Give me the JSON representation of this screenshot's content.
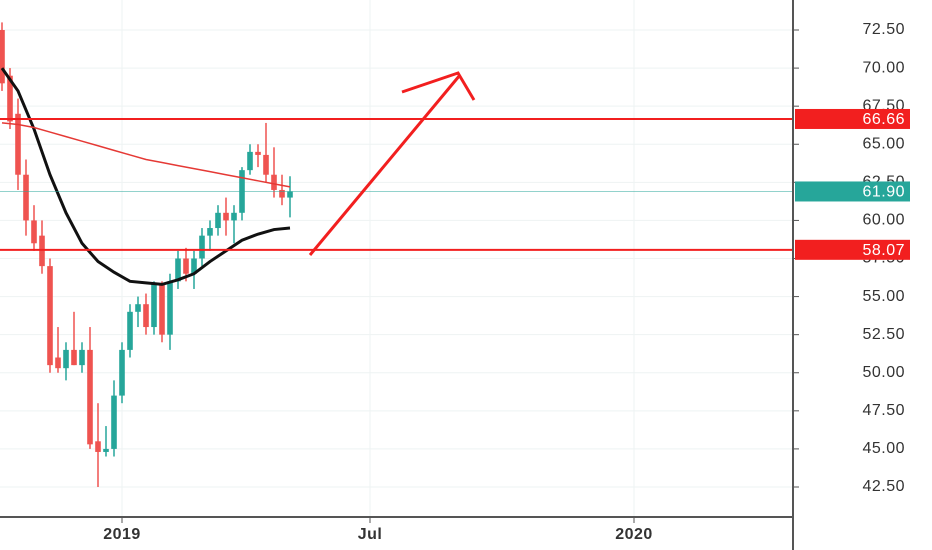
{
  "chart_data": {
    "type": "candlestick",
    "xlim": [
      -15.25,
      83.875
    ],
    "ylim": [
      40.53,
      74.47
    ],
    "xticks": [
      {
        "value": 0,
        "label": "2019"
      },
      {
        "value": 31,
        "label": "Jul"
      },
      {
        "value": 64,
        "label": "2020"
      }
    ],
    "yticks": [
      {
        "value": 42.5,
        "label": "42.50"
      },
      {
        "value": 45,
        "label": "45.00"
      },
      {
        "value": 47.5,
        "label": "47.50"
      },
      {
        "value": 50,
        "label": "50.00"
      },
      {
        "value": 52.5,
        "label": "52.50"
      },
      {
        "value": 55,
        "label": "55.00"
      },
      {
        "value": 57.5,
        "label": "57.50"
      },
      {
        "value": 60,
        "label": "60.00"
      },
      {
        "value": 62.5,
        "label": "62.50"
      },
      {
        "value": 65,
        "label": "65.00"
      },
      {
        "value": 67.5,
        "label": "67.50"
      },
      {
        "value": 70,
        "label": "70.00"
      },
      {
        "value": 72.5,
        "label": "72.50"
      }
    ],
    "grid": true,
    "up_color": "#26a69a",
    "down_color": "#ef5350",
    "candles": {
      "x": [
        -15,
        -14,
        -13,
        -12,
        -11,
        -10,
        -9,
        -8,
        -7,
        -6,
        -5,
        -4,
        -3,
        -2,
        -1,
        0,
        1,
        2,
        3,
        4,
        5,
        6,
        7,
        8,
        9,
        10,
        11,
        12,
        13,
        14,
        15,
        16,
        17,
        18,
        19,
        20,
        21
      ],
      "open": [
        72.5,
        69.5,
        67,
        63,
        60,
        59,
        57,
        51,
        50.3,
        51.5,
        50.5,
        51.5,
        45.5,
        44.8,
        45,
        48.5,
        51.5,
        54,
        54.5,
        53,
        55.8,
        52.5,
        56,
        57.5,
        56.5,
        57.5,
        59,
        59.5,
        60.5,
        60,
        60.5,
        63.3,
        64.5,
        64.3,
        63,
        62,
        61.5
      ],
      "high": [
        73,
        70,
        68,
        64,
        61,
        60,
        57.5,
        53,
        52,
        54,
        52,
        53,
        48,
        46.5,
        49.5,
        52,
        54.5,
        55,
        55.2,
        56,
        56,
        56.5,
        58,
        58.2,
        58,
        59.5,
        60,
        61,
        61.5,
        61,
        63.5,
        65,
        65,
        66.4,
        64.8,
        63,
        62.9
      ],
      "low": [
        68.5,
        66,
        62,
        59,
        58,
        56.5,
        50,
        50,
        49.5,
        50.5,
        50,
        45,
        42.5,
        44.5,
        44.5,
        48,
        51,
        53,
        52.5,
        52.5,
        52,
        51.5,
        55.5,
        56,
        55.5,
        57,
        58,
        59,
        59,
        58.5,
        60,
        63,
        63.5,
        62.5,
        61.5,
        61,
        60.2
      ],
      "close": [
        69,
        66.5,
        63,
        60,
        58.5,
        57,
        50.5,
        50.3,
        51.5,
        50.5,
        51.5,
        45.3,
        44.8,
        45,
        48.5,
        51.5,
        54,
        54.5,
        53,
        55.8,
        52.5,
        56,
        57.5,
        56.5,
        57.5,
        59,
        59.5,
        60.5,
        60,
        60.5,
        63.3,
        64.5,
        64.3,
        63,
        62,
        61.5,
        61.9
      ]
    },
    "series": [
      {
        "color": "#111111",
        "x": [
          -15,
          -13,
          -11,
          -9,
          -7,
          -5,
          -3,
          -1,
          1,
          3,
          5,
          7,
          9,
          11,
          13,
          15,
          17,
          19,
          21
        ],
        "values": [
          70,
          68.5,
          66,
          63,
          60.5,
          58.5,
          57.3,
          56.6,
          56,
          55.9,
          55.8,
          56.1,
          56.5,
          57.3,
          58,
          58.7,
          59.1,
          59.4,
          59.5
        ]
      },
      {
        "color": "#e53935",
        "x": [
          -15,
          -13,
          -11,
          -9,
          -7,
          -5,
          -3,
          -1,
          1,
          3,
          5,
          7,
          9,
          11,
          13,
          15,
          17,
          19,
          21
        ],
        "values": [
          66.4,
          66.3,
          66.1,
          65.8,
          65.5,
          65.2,
          64.9,
          64.6,
          64.3,
          64,
          63.8,
          63.6,
          63.4,
          63.2,
          63,
          62.8,
          62.6,
          62.4,
          62.2
        ]
      }
    ],
    "price_lines": [
      {
        "value": 66.66,
        "color": "#f21f1f"
      },
      {
        "value": 61.9,
        "label": "61.90",
        "color": "#26a69a"
      },
      {
        "value": 58.07,
        "color": "#f21f1f"
      }
    ]
  }
}
